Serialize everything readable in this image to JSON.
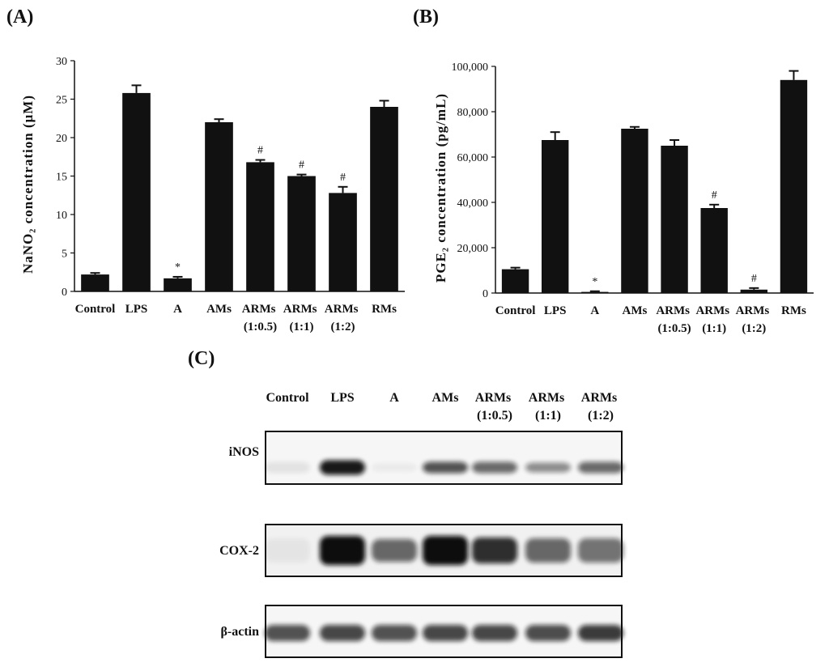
{
  "chart_data": [
    {
      "type": "bar",
      "panel": "(A)",
      "y_label": "NaNO₂ concentration (μM)",
      "color": "#111111",
      "categories": [
        "Control",
        "LPS",
        "A",
        "AMs",
        "ARMs (1:0.5)",
        "ARMs (1:1)",
        "ARMs (1:2)",
        "RMs"
      ],
      "values": [
        2.2,
        25.8,
        1.7,
        22,
        16.8,
        15,
        12.8,
        24
      ],
      "errors": [
        0.2,
        1.0,
        0.2,
        0.4,
        0.3,
        0.2,
        0.8,
        0.8
      ],
      "annotations": [
        {
          "category": "A",
          "text": "*"
        },
        {
          "category": "ARMs (1:0.5)",
          "text": "#"
        },
        {
          "category": "ARMs (1:1)",
          "text": "#"
        },
        {
          "category": "ARMs (1:2)",
          "text": "#"
        }
      ],
      "ylim": [
        0,
        30
      ],
      "yticks": [
        0,
        5,
        10,
        15,
        20,
        25,
        30
      ]
    },
    {
      "type": "bar",
      "panel": "(B)",
      "y_label": "PGE₂ concentration (pg/mL)",
      "color": "#111111",
      "categories": [
        "Control",
        "LPS",
        "A",
        "AMs",
        "ARMs (1:0.5)",
        "ARMs (1:1)",
        "ARMs (1:2)",
        "RMs"
      ],
      "values": [
        10500,
        67500,
        500,
        72500,
        65000,
        37500,
        1500,
        94000
      ],
      "errors": [
        700,
        3500,
        300,
        800,
        2500,
        1500,
        700,
        4000
      ],
      "annotations": [
        {
          "category": "A",
          "text": "*"
        },
        {
          "category": "ARMs (1:1)",
          "text": "#"
        },
        {
          "category": "ARMs (1:2)",
          "text": "#"
        }
      ],
      "ylim": [
        0,
        100000
      ],
      "yticks": [
        0,
        {
          "value": 20000,
          "label": "20,000"
        },
        {
          "value": 40000,
          "label": "40,000"
        },
        {
          "value": 60000,
          "label": "60,000"
        },
        {
          "value": 80000,
          "label": "80,000"
        },
        {
          "value": 100000,
          "label": "100,000"
        }
      ]
    }
  ],
  "blot": {
    "panel": "(C)",
    "lanes": [
      "Control",
      "LPS",
      "A",
      "AMs",
      "ARMs (1:0.5)",
      "ARMs (1:1)",
      "ARMs (1:2)"
    ],
    "rows": [
      "iNOS",
      "COX-2",
      "β-actin"
    ]
  }
}
